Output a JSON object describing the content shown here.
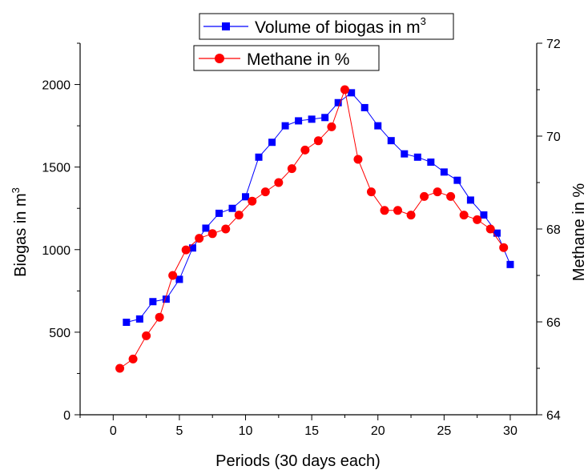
{
  "chart_data": {
    "type": "line",
    "xlabel": "Periods (30 days each)",
    "ylabel": "Biogas in m",
    "ylabel_sup": "3",
    "y2label": "Methane in %",
    "xlim": [
      -2.5,
      32
    ],
    "ylim": [
      0,
      2250
    ],
    "y2lim": [
      64,
      72
    ],
    "xticks": [
      0,
      5,
      10,
      15,
      20,
      25,
      30
    ],
    "yticks": [
      0,
      500,
      1000,
      1500,
      2000
    ],
    "y2ticks": [
      64,
      66,
      68,
      70,
      72
    ],
    "grid": false,
    "legend_position": "top-center",
    "series": [
      {
        "name": "Volume of biogas in m",
        "name_sup": "3",
        "axis": "left",
        "color": "#0000ff",
        "marker": "square",
        "x": [
          1,
          2,
          3,
          4,
          5,
          6,
          7,
          8,
          9,
          10,
          11,
          12,
          13,
          14,
          15,
          16,
          17,
          18,
          19,
          20,
          21,
          22,
          23,
          24,
          25,
          26,
          27,
          28,
          29,
          30
        ],
        "y": [
          560,
          580,
          685,
          700,
          820,
          1010,
          1130,
          1220,
          1250,
          1320,
          1560,
          1650,
          1750,
          1780,
          1790,
          1800,
          1890,
          1950,
          1860,
          1750,
          1660,
          1580,
          1560,
          1530,
          1470,
          1420,
          1300,
          1210,
          1100,
          910
        ]
      },
      {
        "name": "Methane in %",
        "axis": "right",
        "color": "#ff0000",
        "marker": "circle",
        "x": [
          0.5,
          1.5,
          2.5,
          3.5,
          4.5,
          5.5,
          6.5,
          7.5,
          8.5,
          9.5,
          10.5,
          11.5,
          12.5,
          13.5,
          14.5,
          15.5,
          16.5,
          17.5,
          18.5,
          19.5,
          20.5,
          21.5,
          22.5,
          23.5,
          24.5,
          25.5,
          26.5,
          27.5,
          28.5,
          29.5
        ],
        "y": [
          65.0,
          65.2,
          65.7,
          66.1,
          67.0,
          67.55,
          67.8,
          67.9,
          68.0,
          68.3,
          68.6,
          68.8,
          69.0,
          69.3,
          69.7,
          69.9,
          70.2,
          71.0,
          69.5,
          68.8,
          68.4,
          68.4,
          68.3,
          68.7,
          68.8,
          68.7,
          68.3,
          68.2,
          68.0,
          67.6
        ]
      }
    ]
  }
}
